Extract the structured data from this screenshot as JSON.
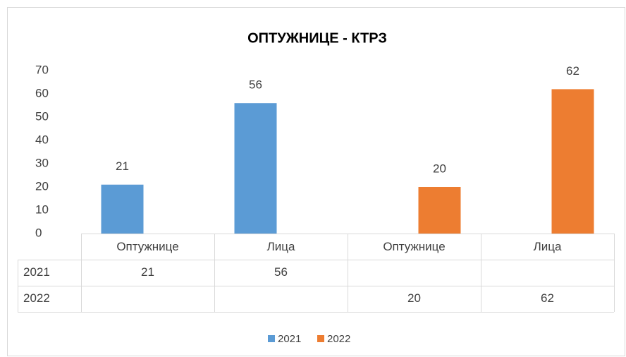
{
  "chart_data": {
    "type": "bar",
    "title": "ОПТУЖНИЦЕ - КТРЗ",
    "categories": [
      "Оптужнице",
      "Лица",
      "Оптужнице",
      "Лица"
    ],
    "series": [
      {
        "name": "2021",
        "color": "#5b9bd5",
        "values": [
          21,
          56,
          null,
          null
        ]
      },
      {
        "name": "2022",
        "color": "#ed7d31",
        "values": [
          null,
          null,
          20,
          62
        ]
      }
    ],
    "ylim": [
      0,
      70
    ],
    "yticks": [
      0,
      10,
      20,
      30,
      40,
      50,
      60,
      70
    ],
    "grid": false,
    "data_labels": true,
    "data_table": true,
    "legend": "bottom"
  }
}
